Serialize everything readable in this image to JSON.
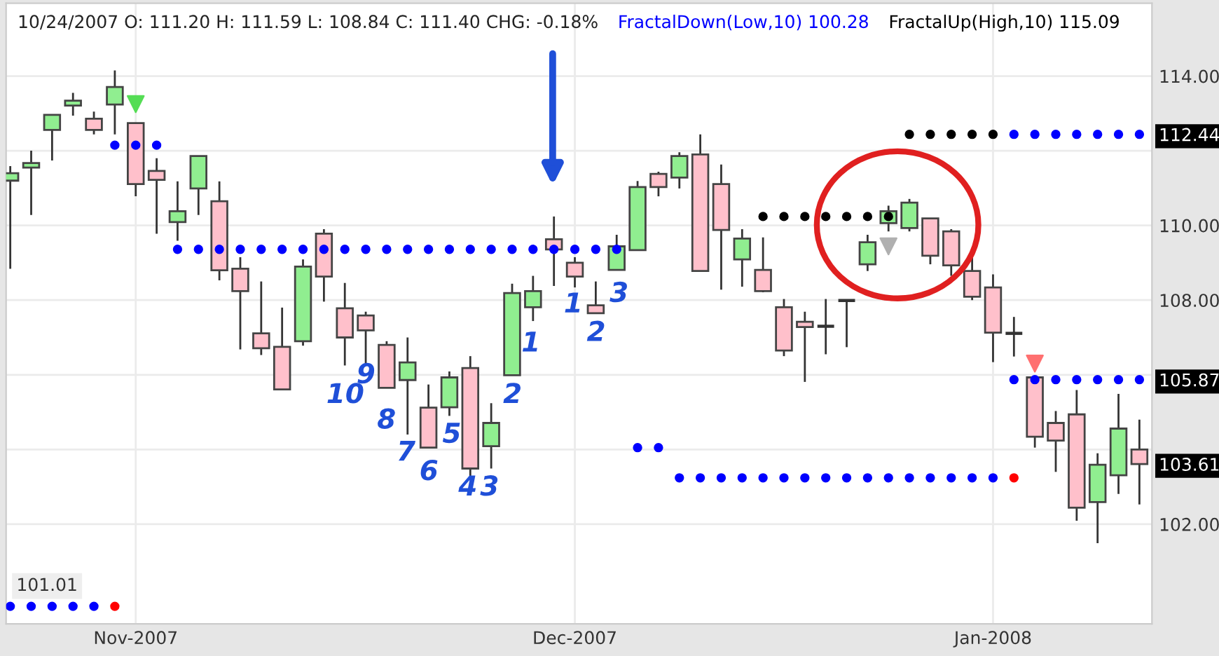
{
  "chart_data": {
    "type": "candlestick",
    "categories": [
      null,
      null,
      null,
      null,
      null,
      null,
      "Nov-2007",
      null,
      null,
      null,
      null,
      null,
      null,
      null,
      null,
      null,
      null,
      null,
      null,
      null,
      null,
      null,
      null,
      null,
      null,
      null,
      null,
      "Dec-2007",
      null,
      null,
      null,
      null,
      null,
      null,
      null,
      null,
      null,
      null,
      null,
      null,
      null,
      null,
      null,
      null,
      null,
      null,
      null,
      "Jan-2008",
      null,
      null,
      null,
      null,
      null,
      null,
      null
    ],
    "ohlc": [
      [
        111.2,
        111.59,
        108.84,
        111.4
      ],
      [
        111.55,
        112.0,
        110.28,
        111.67
      ],
      [
        112.56,
        112.96,
        111.74,
        112.96
      ],
      [
        113.21,
        113.55,
        112.94,
        113.34
      ],
      [
        112.86,
        113.05,
        112.44,
        112.56
      ],
      [
        113.24,
        114.15,
        112.44,
        113.71
      ],
      [
        112.74,
        112.74,
        110.78,
        111.11
      ],
      [
        111.46,
        111.8,
        109.78,
        111.22
      ],
      [
        110.09,
        111.18,
        109.59,
        110.38
      ],
      [
        110.99,
        111.86,
        110.28,
        111.86
      ],
      [
        110.65,
        111.18,
        108.53,
        108.8
      ],
      [
        108.84,
        109.15,
        106.68,
        108.24
      ],
      [
        107.11,
        108.5,
        106.53,
        106.71
      ],
      [
        106.75,
        107.8,
        105.61,
        105.61
      ],
      [
        106.9,
        109.09,
        106.78,
        108.9
      ],
      [
        109.78,
        109.9,
        107.96,
        108.63
      ],
      [
        107.78,
        108.46,
        106.25,
        107.0
      ],
      [
        107.59,
        107.69,
        106.28,
        107.19
      ],
      [
        106.8,
        106.9,
        105.65,
        105.65
      ],
      [
        105.86,
        107.0,
        104.4,
        106.33
      ],
      [
        105.12,
        105.74,
        104.05,
        104.05
      ],
      [
        105.13,
        106.09,
        104.9,
        105.93
      ],
      [
        106.18,
        106.5,
        103.21,
        103.49
      ],
      [
        104.09,
        105.24,
        103.49,
        104.71
      ],
      [
        105.99,
        108.44,
        105.99,
        108.19
      ],
      [
        107.81,
        108.65,
        107.44,
        108.24
      ],
      [
        109.63,
        110.24,
        108.38,
        109.36
      ],
      [
        109.0,
        109.15,
        108.34,
        108.63
      ],
      [
        107.86,
        108.5,
        107.65,
        107.65
      ],
      [
        108.81,
        109.75,
        108.81,
        109.44
      ],
      [
        109.34,
        111.19,
        109.34,
        111.03
      ],
      [
        111.38,
        111.44,
        110.78,
        111.03
      ],
      [
        111.28,
        111.96,
        110.99,
        111.86
      ],
      [
        111.9,
        112.44,
        108.78,
        108.78
      ],
      [
        111.11,
        111.63,
        108.28,
        109.88
      ],
      [
        109.09,
        109.9,
        108.36,
        109.65
      ],
      [
        108.81,
        109.68,
        108.21,
        108.24
      ],
      [
        107.81,
        108.03,
        106.5,
        106.65
      ],
      [
        107.42,
        107.69,
        105.81,
        107.28
      ],
      [
        107.3,
        108.03,
        106.55,
        107.3
      ],
      [
        107.99,
        107.99,
        106.74,
        107.99
      ],
      [
        108.96,
        109.75,
        108.78,
        109.55
      ],
      [
        110.06,
        110.53,
        109.84,
        110.38
      ],
      [
        109.93,
        110.71,
        109.84,
        110.61
      ],
      [
        110.19,
        110.19,
        108.96,
        109.19
      ],
      [
        109.84,
        109.9,
        108.65,
        108.93
      ],
      [
        108.78,
        109.15,
        108.0,
        108.09
      ],
      [
        108.34,
        108.69,
        106.34,
        107.13
      ],
      [
        107.11,
        107.55,
        106.49,
        107.11
      ],
      [
        105.93,
        105.93,
        104.05,
        104.34
      ],
      [
        104.71,
        105.03,
        103.4,
        104.24
      ],
      [
        104.94,
        105.59,
        102.09,
        102.44
      ],
      [
        102.59,
        103.9,
        101.49,
        103.59
      ],
      [
        103.31,
        105.49,
        102.81,
        104.56
      ],
      [
        104.0,
        104.8,
        102.53,
        103.61
      ]
    ],
    "colors": [
      "#90ee90",
      "#90ee90",
      "#90ee90",
      "#90ee90",
      "#ffc0cb",
      "#90ee90",
      "#ffc0cb",
      "#ffc0cb",
      "#90ee90",
      "#90ee90",
      "#ffc0cb",
      "#ffc0cb",
      "#ffc0cb",
      "#ffc0cb",
      "#90ee90",
      "#ffc0cb",
      "#ffc0cb",
      "#ffc0cb",
      "#ffc0cb",
      "#90ee90",
      "#ffc0cb",
      "#90ee90",
      "#ffc0cb",
      "#90ee90",
      "#90ee90",
      "#90ee90",
      "#ffc0cb",
      "#ffc0cb",
      "#ffc0cb",
      "#90ee90",
      "#90ee90",
      "#ffc0cb",
      "#90ee90",
      "#ffc0cb",
      "#ffc0cb",
      "#90ee90",
      "#ffc0cb",
      "#ffc0cb",
      "#ffc0cb",
      "#333333",
      "#333333",
      "#90ee90",
      "#90ee90",
      "#90ee90",
      "#ffc0cb",
      "#ffc0cb",
      "#ffc0cb",
      "#ffc0cb",
      "#333333",
      "#ffc0cb",
      "#ffc0cb",
      "#ffc0cb",
      "#90ee90",
      "#90ee90",
      "#ffc0cb"
    ],
    "series": [
      {
        "type": "scatter",
        "name": "FractalDown(Low,10) 100.28",
        "color": "#0000ff",
        "marker": "circle",
        "values": [
          99.8,
          99.8,
          99.8,
          99.8,
          99.8,
          112.15,
          112.15,
          112.15,
          109.36,
          109.36,
          109.36,
          109.36,
          109.36,
          109.36,
          109.36,
          109.36,
          109.36,
          109.36,
          109.36,
          109.36,
          109.36,
          109.36,
          109.36,
          109.36,
          109.36,
          109.36,
          109.36,
          109.36,
          109.36,
          109.36,
          104.05,
          104.05,
          103.24,
          103.24,
          103.24,
          103.24,
          103.24,
          103.24,
          103.24,
          103.24,
          103.24,
          103.24,
          103.24,
          103.24,
          103.24,
          103.24,
          103.24,
          103.24,
          105.87,
          105.87,
          105.87,
          105.87,
          105.87,
          105.87,
          105.87
        ]
      },
      {
        "type": "scatter",
        "name": "FractalUp(High,10) 115.09",
        "color": "#000000",
        "marker": "circle",
        "values": [
          null,
          null,
          null,
          null,
          null,
          null,
          null,
          null,
          null,
          null,
          null,
          null,
          null,
          null,
          null,
          null,
          null,
          null,
          null,
          null,
          null,
          null,
          null,
          null,
          null,
          null,
          null,
          null,
          null,
          null,
          null,
          null,
          null,
          null,
          null,
          null,
          110.24,
          110.24,
          110.24,
          110.24,
          110.24,
          110.24,
          110.24,
          112.44,
          112.44,
          112.44,
          112.44,
          112.44,
          null,
          null,
          null,
          null,
          null,
          null,
          null
        ]
      },
      {
        "type": "scatter",
        "color": "#0000ff",
        "marker": "circle",
        "values": [
          null,
          null,
          null,
          null,
          null,
          null,
          null,
          null,
          null,
          null,
          null,
          null,
          null,
          null,
          null,
          null,
          null,
          null,
          null,
          null,
          null,
          null,
          null,
          null,
          null,
          null,
          null,
          null,
          null,
          null,
          null,
          null,
          null,
          null,
          null,
          null,
          null,
          null,
          null,
          null,
          null,
          null,
          null,
          null,
          null,
          null,
          null,
          null,
          112.44,
          112.44,
          112.44,
          112.44,
          112.44,
          112.44,
          112.44
        ]
      },
      {
        "type": "scatter",
        "color": "#ff0000",
        "marker": "circle",
        "values": [
          null,
          null,
          null,
          null,
          null,
          99.8,
          null,
          null,
          null,
          null,
          null,
          null,
          null,
          null,
          null,
          null,
          null,
          null,
          null,
          null,
          null,
          null,
          null,
          null,
          null,
          null,
          null,
          null,
          null,
          null,
          null,
          null,
          null,
          null,
          null,
          null,
          null,
          null,
          null,
          null,
          null,
          null,
          null,
          null,
          null,
          null,
          null,
          null,
          103.24,
          null,
          null,
          null,
          null,
          null,
          null
        ]
      },
      {
        "type": "scatter",
        "color": "#55dd55",
        "marker": "triangle",
        "values": [
          null,
          null,
          null,
          null,
          null,
          null,
          113.25,
          null,
          null,
          null,
          null,
          null,
          null,
          null,
          null,
          null,
          null,
          null,
          null,
          null,
          null,
          null,
          null,
          null,
          null,
          null,
          null,
          null,
          null,
          null,
          null,
          null,
          null,
          null,
          null,
          null,
          null,
          null,
          null,
          null,
          null,
          null,
          null,
          null,
          null,
          null,
          null,
          null,
          null,
          null,
          null,
          null,
          null,
          null,
          null
        ]
      },
      {
        "type": "scatter",
        "color": "#b0b0b0",
        "marker": "triangle",
        "values": [
          null,
          null,
          null,
          null,
          null,
          null,
          null,
          null,
          null,
          null,
          null,
          null,
          null,
          null,
          null,
          null,
          null,
          null,
          null,
          null,
          null,
          null,
          null,
          null,
          null,
          null,
          null,
          null,
          null,
          null,
          null,
          null,
          null,
          null,
          null,
          null,
          null,
          null,
          null,
          null,
          null,
          null,
          109.44,
          null,
          null,
          null,
          null,
          null,
          null,
          null,
          null,
          null,
          null,
          null,
          null
        ]
      },
      {
        "type": "scatter",
        "color": "#ff7070",
        "marker": "triangle",
        "values": [
          null,
          null,
          null,
          null,
          null,
          null,
          null,
          null,
          null,
          null,
          null,
          null,
          null,
          null,
          null,
          null,
          null,
          null,
          null,
          null,
          null,
          null,
          null,
          null,
          null,
          null,
          null,
          null,
          null,
          null,
          null,
          null,
          null,
          null,
          null,
          null,
          null,
          null,
          null,
          null,
          null,
          null,
          null,
          null,
          null,
          null,
          null,
          null,
          null,
          106.3,
          null,
          null,
          null,
          null,
          null
        ]
      }
    ],
    "ylim": [
      99.33,
      115.95
    ],
    "yticks": [
      {
        "value": 102,
        "label": "102.00"
      },
      {
        "value": 104,
        "label": null
      },
      {
        "value": 106,
        "label": null
      },
      {
        "value": 108,
        "label": "108.00"
      },
      {
        "value": 110,
        "label": "110.00"
      },
      {
        "value": 112,
        "label": null
      },
      {
        "value": 114,
        "label": "114.00"
      },
      112.44,
      105.87,
      103.61
    ],
    "grid": true,
    "legend": "top",
    "annotations": [
      "10/24/2007 O: 111.20 H: 111.59 L: 108.84 C: 111.40 CHG: -0.18%",
      "101.01",
      "10",
      "9",
      "8",
      "7",
      "6",
      "5",
      "4",
      "3",
      "2",
      "1",
      "1",
      "2",
      "3"
    ]
  }
}
